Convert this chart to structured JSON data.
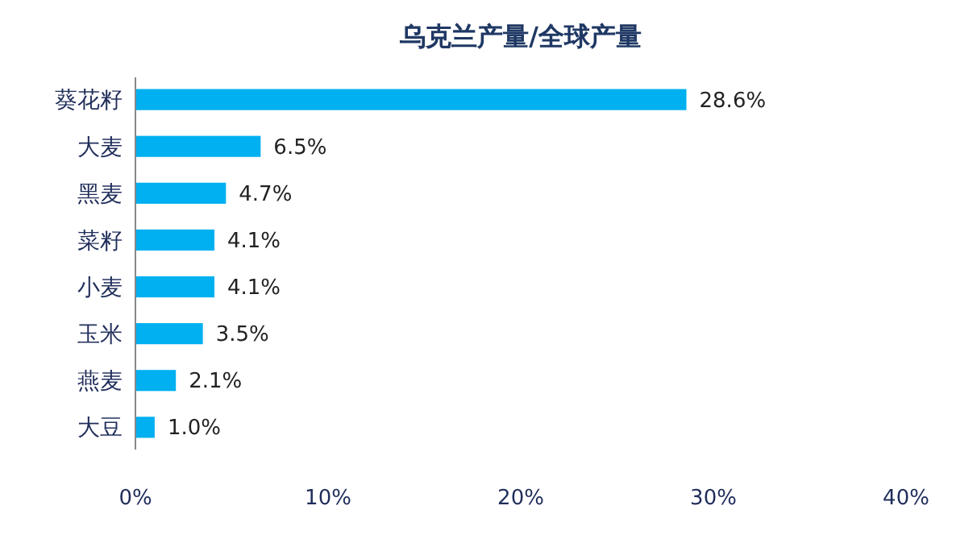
{
  "chart_data": {
    "type": "bar",
    "orientation": "horizontal",
    "title": "乌克兰产量/全球产量",
    "categories": [
      "葵花籽",
      "大麦",
      "黑麦",
      "菜籽",
      "小麦",
      "玉米",
      "燕麦",
      "大豆"
    ],
    "values": [
      28.6,
      6.5,
      4.7,
      4.1,
      4.1,
      3.5,
      2.1,
      1.0
    ],
    "value_labels": [
      "28.6%",
      "6.5%",
      "4.7%",
      "4.1%",
      "4.1%",
      "3.5%",
      "2.1%",
      "1.0%"
    ],
    "color": "#00b0f0",
    "xlim": [
      0,
      40
    ],
    "xticks": [
      {
        "value": 0,
        "label": "0%"
      },
      {
        "value": 10,
        "label": "10%"
      },
      {
        "value": 20,
        "label": "20%"
      },
      {
        "value": 30,
        "label": "30%"
      },
      {
        "value": 40,
        "label": "40%"
      }
    ],
    "grid": false
  }
}
